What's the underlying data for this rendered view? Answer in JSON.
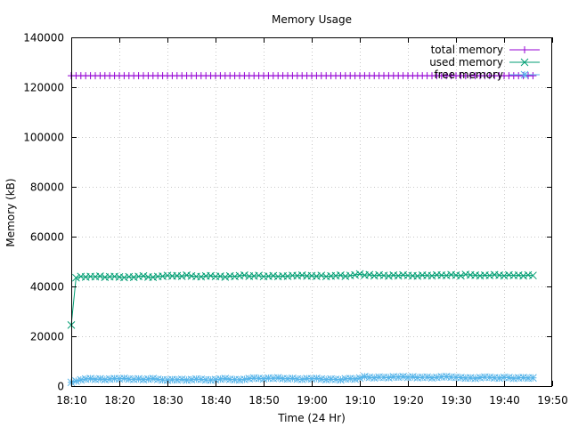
{
  "chart_data": {
    "type": "line",
    "title": "Memory Usage",
    "xlabel": "Time (24 Hr)",
    "ylabel": "Memory (kB)",
    "xlim": [
      "18:10",
      "19:50"
    ],
    "ylim": [
      0,
      140000
    ],
    "x_ticks": [
      "18:10",
      "18:20",
      "18:30",
      "18:40",
      "18:50",
      "19:00",
      "19:10",
      "19:20",
      "19:30",
      "19:40",
      "19:50"
    ],
    "y_ticks": [
      0,
      20000,
      40000,
      60000,
      80000,
      100000,
      120000,
      140000
    ],
    "grid": true,
    "legend_position": "top-right",
    "sample_times": [
      "18:10",
      "18:11",
      "18:12",
      "18:13",
      "18:14",
      "18:15",
      "18:16",
      "18:17",
      "18:18",
      "18:19",
      "18:20",
      "18:21",
      "18:22",
      "18:23",
      "18:24",
      "18:25",
      "18:26",
      "18:27",
      "18:28",
      "18:29",
      "18:30",
      "18:31",
      "18:32",
      "18:33",
      "18:34",
      "18:35",
      "18:36",
      "18:37",
      "18:38",
      "18:39",
      "18:40",
      "18:41",
      "18:42",
      "18:43",
      "18:44",
      "18:45",
      "18:46",
      "18:47",
      "18:48",
      "18:49",
      "18:50",
      "18:51",
      "18:52",
      "18:53",
      "18:54",
      "18:55",
      "18:56",
      "18:57",
      "18:58",
      "18:59",
      "19:00",
      "19:01",
      "19:02",
      "19:03",
      "19:04",
      "19:05",
      "19:06",
      "19:07",
      "19:08",
      "19:09",
      "19:10",
      "19:11",
      "19:12",
      "19:13",
      "19:14",
      "19:15",
      "19:16",
      "19:17",
      "19:18",
      "19:19",
      "19:20",
      "19:21",
      "19:22",
      "19:23",
      "19:24",
      "19:25",
      "19:26",
      "19:27",
      "19:28",
      "19:29",
      "19:30",
      "19:31",
      "19:32",
      "19:33",
      "19:34",
      "19:35",
      "19:36",
      "19:37",
      "19:38",
      "19:39",
      "19:40",
      "19:41",
      "19:42",
      "19:43",
      "19:44",
      "19:45",
      "19:46"
    ],
    "series": [
      {
        "name": "total memory",
        "color": "#9400d3",
        "marker": "plus",
        "values": [
          124600,
          124600,
          124600,
          124600,
          124600,
          124600,
          124600,
          124600,
          124600,
          124600,
          124600,
          124600,
          124600,
          124600,
          124600,
          124600,
          124600,
          124600,
          124600,
          124600,
          124600,
          124600,
          124600,
          124600,
          124600,
          124600,
          124600,
          124600,
          124600,
          124600,
          124600,
          124600,
          124600,
          124600,
          124600,
          124600,
          124600,
          124600,
          124600,
          124600,
          124600,
          124600,
          124600,
          124600,
          124600,
          124600,
          124600,
          124600,
          124600,
          124600,
          124600,
          124600,
          124600,
          124600,
          124600,
          124600,
          124600,
          124600,
          124600,
          124600,
          124600,
          124600,
          124600,
          124600,
          124600,
          124600,
          124600,
          124600,
          124600,
          124600,
          124600,
          124600,
          124600,
          124600,
          124600,
          124600,
          124600,
          124600,
          124600,
          124600,
          124600,
          124600,
          124600,
          124600,
          124600,
          124600,
          124600,
          124600,
          124600,
          124600,
          124600,
          124600,
          124600,
          124600,
          124600,
          124600,
          124600
        ]
      },
      {
        "name": "used memory",
        "color": "#009e73",
        "marker": "cross",
        "values": [
          24500,
          43500,
          44000,
          43800,
          44000,
          43900,
          44100,
          43700,
          43900,
          44000,
          43800,
          43600,
          43900,
          43700,
          44000,
          44200,
          43800,
          43700,
          44000,
          44100,
          44400,
          44200,
          44300,
          44100,
          44500,
          44200,
          44000,
          43900,
          44200,
          44300,
          44000,
          44100,
          43800,
          44200,
          44000,
          44300,
          44500,
          44100,
          44200,
          44400,
          44000,
          44100,
          44300,
          44000,
          44200,
          44100,
          44400,
          44300,
          44500,
          44200,
          44300,
          44100,
          44400,
          44000,
          44200,
          44300,
          44500,
          44100,
          44400,
          44600,
          45000,
          44500,
          44700,
          44300,
          44600,
          44400,
          44200,
          44500,
          44300,
          44600,
          44400,
          44300,
          44200,
          44500,
          44400,
          44300,
          44600,
          44500,
          44400,
          44700,
          44500,
          44300,
          44800,
          44600,
          44500,
          44300,
          44500,
          44400,
          44700,
          44500,
          44300,
          44600,
          44400,
          44500,
          44300,
          44600,
          44400
        ]
      },
      {
        "name": "free memory",
        "color": "#56b4e9",
        "marker": "star",
        "values": [
          1500,
          2000,
          2500,
          2800,
          3000,
          2700,
          2900,
          2600,
          2800,
          3000,
          2900,
          3100,
          2800,
          2700,
          2900,
          2600,
          2800,
          3000,
          2700,
          2500,
          2400,
          2600,
          2500,
          2700,
          2400,
          2600,
          2800,
          2700,
          2500,
          2400,
          2600,
          2800,
          3000,
          2700,
          2600,
          2500,
          2700,
          3000,
          3200,
          3100,
          2900,
          3200,
          3100,
          3300,
          3000,
          2900,
          3100,
          2800,
          2700,
          3000,
          2900,
          3100,
          2800,
          2600,
          2800,
          2700,
          2500,
          2900,
          3000,
          2800,
          3200,
          3800,
          3500,
          3300,
          3600,
          3500,
          3400,
          3700,
          3600,
          3800,
          3500,
          3700,
          3400,
          3500,
          3600,
          3300,
          3500,
          3700,
          3800,
          3600,
          3500,
          3400,
          3200,
          3300,
          3100,
          3400,
          3600,
          3500,
          3300,
          3200,
          3500,
          3400,
          3100,
          3300,
          3400,
          3200,
          3300
        ]
      }
    ]
  }
}
